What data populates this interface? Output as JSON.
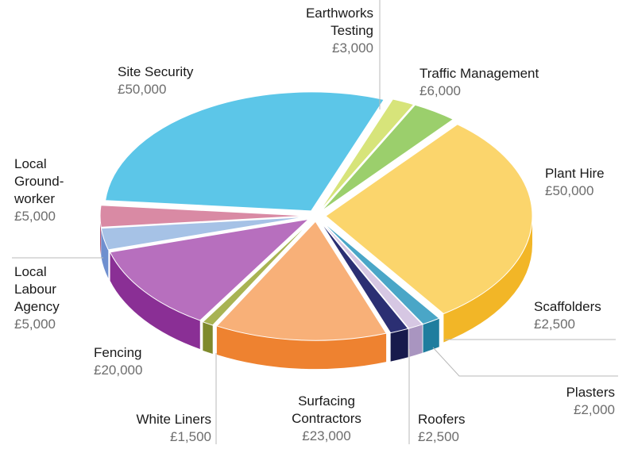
{
  "chart_data": {
    "type": "pie",
    "title": "",
    "currency": "£",
    "slices": [
      {
        "name": "Earthworks Testing",
        "value": "£3,000",
        "amount": 3000,
        "color": "#d7e47a",
        "side": "#b8c84a"
      },
      {
        "name": "Traffic Management",
        "value": "£6,000",
        "amount": 6000,
        "color": "#9bcf6c",
        "side": "#5aa83a"
      },
      {
        "name": "Plant Hire",
        "value": "£50,000",
        "amount": 50000,
        "color": "#fbd56c",
        "side": "#f2b627"
      },
      {
        "name": "Scaffolders",
        "value": "£2,500",
        "amount": 2500,
        "color": "#4aa6c7",
        "side": "#1f7d9e"
      },
      {
        "name": "Plasters",
        "value": "£2,000",
        "amount": 2000,
        "color": "#d6c7e3",
        "side": "#a995c0"
      },
      {
        "name": "Roofers",
        "value": "£2,500",
        "amount": 2500,
        "color": "#2b2f73",
        "side": "#171a4c"
      },
      {
        "name": "Surfacing Contractors",
        "value": "£23,000",
        "amount": 23000,
        "color": "#f8b078",
        "side": "#ee8230"
      },
      {
        "name": "White Liners",
        "value": "£1,500",
        "amount": 1500,
        "color": "#a8b353",
        "side": "#7f8a2c"
      },
      {
        "name": "Fencing",
        "value": "£20,000",
        "amount": 20000,
        "color": "#b76fbe",
        "side": "#8a2f95"
      },
      {
        "name": "Local Labour Agency",
        "value": "£5,000",
        "amount": 5000,
        "color": "#a6c2e6",
        "side": "#6f8fcf"
      },
      {
        "name": "Local Ground-worker",
        "value": "£5,000",
        "amount": 5000,
        "color": "#d98aa4",
        "side": "#b45d7c"
      },
      {
        "name": "Site Security",
        "value": "£50,000",
        "amount": 50000,
        "color": "#5cc6e8",
        "side": "#1fa6d4"
      }
    ]
  },
  "labels": {
    "earthworks": {
      "name": "Earthworks\nTesting",
      "value": "£3,000"
    },
    "traffic": {
      "name": "Traffic Management",
      "value": "£6,000"
    },
    "plant": {
      "name": "Plant Hire",
      "value": "£50,000"
    },
    "scaffolders": {
      "name": "Scaffolders",
      "value": "£2,500"
    },
    "plasters": {
      "name": "Plasters",
      "value": "£2,000"
    },
    "roofers": {
      "name": "Roofers",
      "value": "£2,500"
    },
    "surfacing": {
      "name": "Surfacing\nContractors",
      "value": "£23,000"
    },
    "whiteliners": {
      "name": "White Liners",
      "value": "£1,500"
    },
    "fencing": {
      "name": "Fencing",
      "value": "£20,000"
    },
    "agency": {
      "name": "Local\nLabour\nAgency",
      "value": "£5,000"
    },
    "groundworker": {
      "name": "Local\nGround-\nworker",
      "value": "£5,000"
    },
    "security": {
      "name": "Site Security",
      "value": "£50,000"
    }
  }
}
